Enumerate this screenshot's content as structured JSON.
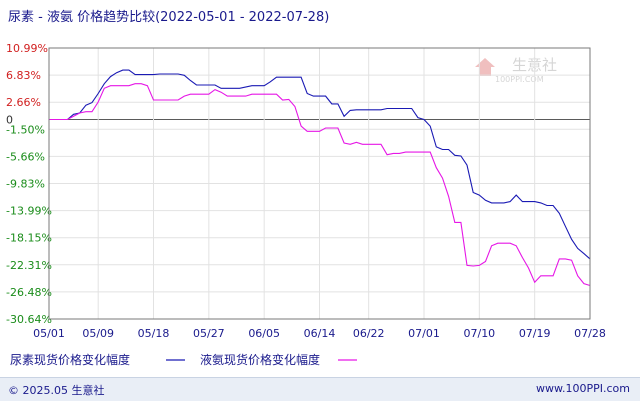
{
  "chart_data": {
    "type": "line",
    "title": "尿素 - 液氨 价格趋势比较(2022-05-01 - 2022-07-28)",
    "y_ticks": [
      "10.99%",
      "6.83%",
      "2.66%",
      "0",
      "-1.50%",
      "-5.66%",
      "-9.83%",
      "-13.99%",
      "-18.15%",
      "-22.31%",
      "-26.48%",
      "-30.64%"
    ],
    "y_tick_values": [
      10.99,
      6.83,
      2.66,
      0,
      -1.5,
      -5.66,
      -9.83,
      -13.99,
      -18.15,
      -22.31,
      -26.48,
      -30.64
    ],
    "ylim": [
      -30.64,
      10.99
    ],
    "x_ticks": [
      "05/01",
      "05/09",
      "05/18",
      "05/27",
      "06/05",
      "06/14",
      "06/22",
      "07/01",
      "07/10",
      "07/19",
      "07/28"
    ],
    "x_tick_days": [
      0,
      8,
      17,
      26,
      35,
      44,
      52,
      61,
      70,
      79,
      88
    ],
    "xlim": [
      0,
      88
    ],
    "grid": true,
    "series": [
      {
        "name": "尿素现货价格变化幅度",
        "color": "#1a1ab4",
        "points": [
          [
            0,
            0
          ],
          [
            3,
            0
          ],
          [
            4,
            0.8
          ],
          [
            5,
            1
          ],
          [
            6,
            2.2
          ],
          [
            7,
            2.6
          ],
          [
            8,
            4
          ],
          [
            9,
            5.5
          ],
          [
            10,
            6.6
          ],
          [
            11,
            7.2
          ],
          [
            12,
            7.6
          ],
          [
            13,
            7.6
          ],
          [
            14,
            6.9
          ],
          [
            17,
            6.9
          ],
          [
            18,
            7.0
          ],
          [
            21,
            7.0
          ],
          [
            22,
            6.8
          ],
          [
            23,
            6.0
          ],
          [
            24,
            5.3
          ],
          [
            27,
            5.3
          ],
          [
            28,
            4.8
          ],
          [
            31,
            4.8
          ],
          [
            33,
            5.2
          ],
          [
            35,
            5.2
          ],
          [
            36,
            5.8
          ],
          [
            37,
            6.5
          ],
          [
            40,
            6.5
          ],
          [
            41,
            6.5
          ],
          [
            42,
            4.0
          ],
          [
            43,
            3.6
          ],
          [
            44,
            3.6
          ],
          [
            45,
            3.6
          ],
          [
            46,
            2.4
          ],
          [
            47,
            2.4
          ],
          [
            48,
            0.5
          ],
          [
            49,
            1.4
          ],
          [
            50,
            1.5
          ],
          [
            54,
            1.5
          ],
          [
            55,
            1.7
          ],
          [
            59,
            1.7
          ],
          [
            60,
            0.3
          ],
          [
            61,
            0
          ],
          [
            62,
            -1.0
          ],
          [
            63,
            -4.2
          ],
          [
            64,
            -4.6
          ],
          [
            65,
            -4.6
          ],
          [
            66,
            -5.5
          ],
          [
            67,
            -5.6
          ],
          [
            68,
            -7.0
          ],
          [
            69,
            -11.2
          ],
          [
            70,
            -11.6
          ],
          [
            71,
            -12.4
          ],
          [
            72,
            -12.8
          ],
          [
            73,
            -12.8
          ],
          [
            74,
            -12.8
          ],
          [
            75,
            -12.6
          ],
          [
            76,
            -11.6
          ],
          [
            77,
            -12.6
          ],
          [
            79,
            -12.6
          ],
          [
            80,
            -12.8
          ],
          [
            81,
            -13.2
          ],
          [
            82,
            -13.2
          ],
          [
            83,
            -14.4
          ],
          [
            84,
            -16.4
          ],
          [
            85,
            -18.4
          ],
          [
            86,
            -19.8
          ],
          [
            87,
            -20.6
          ],
          [
            88,
            -21.4
          ]
        ]
      },
      {
        "name": "液氨现货价格变化幅度",
        "color": "#e617e6",
        "points": [
          [
            0,
            0
          ],
          [
            3,
            0
          ],
          [
            4,
            0.5
          ],
          [
            5,
            1
          ],
          [
            6,
            1.2
          ],
          [
            7,
            1.2
          ],
          [
            8,
            2.7
          ],
          [
            9,
            4.8
          ],
          [
            10,
            5.2
          ],
          [
            13,
            5.2
          ],
          [
            14,
            5.5
          ],
          [
            15,
            5.5
          ],
          [
            16,
            5.2
          ],
          [
            17,
            3.0
          ],
          [
            18,
            3.0
          ],
          [
            21,
            3.0
          ],
          [
            22,
            3.6
          ],
          [
            23,
            3.9
          ],
          [
            26,
            3.9
          ],
          [
            27,
            4.6
          ],
          [
            28,
            4.2
          ],
          [
            29,
            3.6
          ],
          [
            32,
            3.6
          ],
          [
            33,
            3.9
          ],
          [
            37,
            3.9
          ],
          [
            38,
            3.0
          ],
          [
            39,
            3.1
          ],
          [
            40,
            2.0
          ],
          [
            41,
            -1.0
          ],
          [
            42,
            -1.8
          ],
          [
            44,
            -1.8
          ],
          [
            45,
            -1.3
          ],
          [
            46,
            -1.3
          ],
          [
            47,
            -1.3
          ],
          [
            48,
            -3.6
          ],
          [
            49,
            -3.8
          ],
          [
            50,
            -3.5
          ],
          [
            51,
            -3.8
          ],
          [
            54,
            -3.8
          ],
          [
            55,
            -5.4
          ],
          [
            56,
            -5.2
          ],
          [
            57,
            -5.2
          ],
          [
            58,
            -5.0
          ],
          [
            61,
            -5.0
          ],
          [
            62,
            -5.0
          ],
          [
            63,
            -7.4
          ],
          [
            64,
            -9.0
          ],
          [
            65,
            -11.8
          ],
          [
            66,
            -15.8
          ],
          [
            67,
            -15.8
          ],
          [
            68,
            -22.4
          ],
          [
            69,
            -22.5
          ],
          [
            70,
            -22.4
          ],
          [
            71,
            -21.8
          ],
          [
            72,
            -19.4
          ],
          [
            73,
            -19.0
          ],
          [
            74,
            -19.0
          ],
          [
            75,
            -19.0
          ],
          [
            76,
            -19.4
          ],
          [
            77,
            -21.2
          ],
          [
            78,
            -22.8
          ],
          [
            79,
            -25.0
          ],
          [
            80,
            -24.0
          ],
          [
            81,
            -24.0
          ],
          [
            82,
            -24.0
          ],
          [
            83,
            -21.4
          ],
          [
            84,
            -21.4
          ],
          [
            85,
            -21.6
          ],
          [
            86,
            -24.0
          ],
          [
            87,
            -25.2
          ],
          [
            88,
            -25.5
          ]
        ]
      }
    ]
  },
  "watermark": {
    "text": "生意社",
    "sub": "100PPI.COM"
  },
  "footer": {
    "left": "© 2025.05 生意社",
    "right": "www.100PPI.com"
  }
}
